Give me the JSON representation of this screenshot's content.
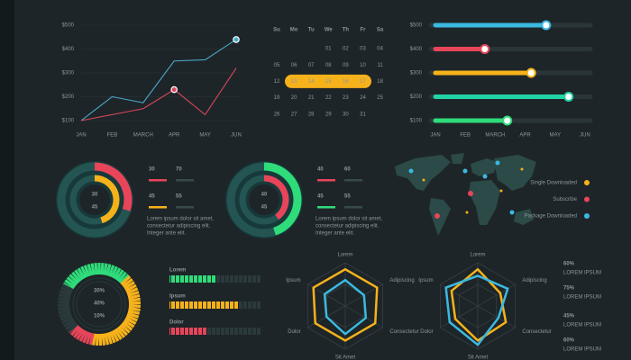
{
  "chart_data": [
    {
      "type": "line",
      "categories": [
        "JAN",
        "FEB",
        "MARCH",
        "APR",
        "MAY",
        "JUN"
      ],
      "series": [
        {
          "color": "#4aa8c8",
          "values": [
            100,
            200,
            175,
            350,
            355,
            440
          ],
          "marker": 5
        },
        {
          "color": "#d9475a",
          "values": [
            100,
            125,
            150,
            230,
            125,
            320
          ],
          "marker": 3
        }
      ],
      "ylim": [
        100,
        500
      ],
      "yticks": [
        {
          "value": 100,
          "label": "$100"
        },
        {
          "value": 200,
          "label": "$200"
        },
        {
          "value": 300,
          "label": "$300"
        },
        {
          "value": 400,
          "label": "$400"
        },
        {
          "value": 500,
          "label": "$500"
        }
      ],
      "grid": true
    },
    {
      "type": "hbar",
      "categories": [
        "$500",
        "$400",
        "$300",
        "$200",
        "$100"
      ],
      "colors": [
        "#3bb9e0",
        "#e8455a",
        "#f6b21b",
        "#22d3a6",
        "#2fdc7a"
      ],
      "values": [
        3.7,
        1.65,
        3.2,
        4.45,
        2.4
      ],
      "xlim": [
        0,
        5
      ],
      "xticks": [
        {
          "value": 0,
          "label": "JAN"
        },
        {
          "value": 1,
          "label": "FEB"
        },
        {
          "value": 2,
          "label": "MARCH"
        },
        {
          "value": 3,
          "label": "APR"
        },
        {
          "value": 4,
          "label": "MAY"
        },
        {
          "value": 5,
          "label": "JUN"
        }
      ]
    },
    {
      "type": "donut",
      "rings": [
        {
          "value": 30,
          "rest": 70,
          "color": "#e8455a",
          "ring": "outer"
        },
        {
          "value": 45,
          "rest": 55,
          "color": "#f6b21b",
          "ring": "inner"
        }
      ],
      "annotations": [
        "Lorem ipsum dolor sit amet,",
        "consectetur adipiscing elit.",
        "Integer ante elit."
      ]
    },
    {
      "type": "donut",
      "rings": [
        {
          "value": 40,
          "rest": 60,
          "color": "#e8455a",
          "ring": "inner"
        },
        {
          "value": 45,
          "rest": 55,
          "color": "#2fdc7a",
          "ring": "outer"
        }
      ],
      "annotations": [
        "Lorem ipsum dolor sit amet,",
        "consectetur adipiscing elit.",
        "Integer ante elit."
      ]
    },
    {
      "type": "gauge",
      "values": [
        30,
        40,
        10
      ],
      "value_labels": [
        "30%",
        "40%",
        "10%"
      ],
      "colors": [
        "#2fdc7a",
        "#f6b21b",
        "#e8455a"
      ]
    },
    {
      "type": "progress",
      "categories": [
        "Lorem",
        "Ipsum",
        "Dolor"
      ],
      "values": [
        50,
        75,
        40
      ],
      "colors": [
        "#2fdc7a",
        "#f6b21b",
        "#e8455a"
      ],
      "xlim": [
        0,
        100
      ]
    },
    {
      "type": "radar",
      "axes": [
        "Lorem",
        "Adipiscing",
        "Consectetur",
        "Sit Amet",
        "Dolor",
        "Ipsum"
      ],
      "rlim": [
        0,
        100
      ],
      "series": [
        {
          "color": "#f6b21b",
          "values": [
            85,
            85,
            80,
            80,
            80,
            85
          ]
        },
        {
          "color": "#3bb9e0",
          "values": [
            60,
            50,
            55,
            65,
            50,
            55
          ]
        }
      ]
    },
    {
      "type": "radar",
      "axes": [
        "Lorem",
        "Adipiscing",
        "Consectetur",
        "Sit Amet",
        "Dolor",
        "Ipsum"
      ],
      "rlim": [
        0,
        100
      ],
      "series": [
        {
          "color": "#f6b21b",
          "values": [
            85,
            60,
            75,
            80,
            60,
            70
          ]
        },
        {
          "color": "#3bb9e0",
          "values": [
            70,
            80,
            55,
            90,
            75,
            85
          ]
        }
      ]
    }
  ],
  "calendar": {
    "weekdays": [
      "Su",
      "Mo",
      "Tu",
      "We",
      "Th",
      "Fr",
      "Sa"
    ],
    "weeks": [
      [
        null,
        null,
        null,
        "01",
        "02",
        "03",
        "04"
      ],
      [
        "05",
        "06",
        "07",
        "08",
        "09",
        "10",
        "11"
      ],
      [
        "12",
        "13",
        "14",
        "15",
        "16",
        "17",
        "18"
      ],
      [
        "19",
        "20",
        "21",
        "22",
        "23",
        "24",
        "25"
      ],
      [
        "26",
        "27",
        "28",
        "29",
        "30",
        "31",
        null
      ]
    ]
  },
  "map": {
    "legend": [
      {
        "label": "Single Downloaded",
        "color": "#f6b21b"
      },
      {
        "label": "Subscribe",
        "color": "#e8455a"
      },
      {
        "label": "Package Downloaded",
        "color": "#3bb9e0"
      }
    ]
  },
  "stats": [
    {
      "value": "60%",
      "label": "LOREM IPSUM",
      "color": "#3bb9e0"
    },
    {
      "value": "75%",
      "label": "LOREM IPSUM",
      "color": "#f6b21b"
    },
    {
      "value": "45%",
      "label": "LOREM IPSUM",
      "color": "#3bb9e0"
    },
    {
      "value": "60%",
      "label": "LOREM IPSUM",
      "color": "#f6b21b"
    }
  ]
}
